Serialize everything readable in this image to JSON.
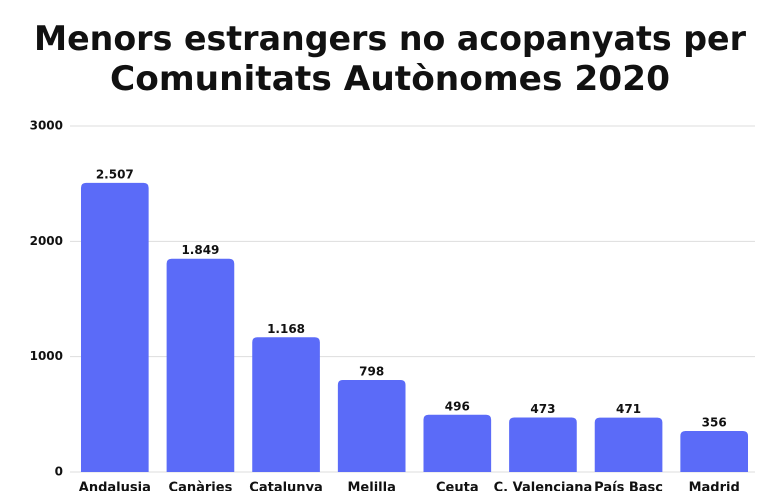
{
  "chart_data": {
    "type": "bar",
    "title": [
      "Menors estrangers no acopanyats per",
      "Comunitats Autònomes 2020"
    ],
    "categories": [
      "Andalusia",
      "Canàries",
      "Catalunya",
      "Melilla",
      "Ceuta",
      "C. Valenciana",
      "País Basc",
      "Madrid"
    ],
    "values": [
      2507,
      1849,
      1168,
      798,
      496,
      473,
      471,
      356
    ],
    "value_labels": [
      "2.507",
      "1.849",
      "1.168",
      "798",
      "496",
      "473",
      "471",
      "356"
    ],
    "color": "#5b6bf8",
    "ylim": [
      0,
      3000
    ],
    "yticks": [
      0,
      1000,
      2000,
      3000
    ],
    "grid": true
  }
}
